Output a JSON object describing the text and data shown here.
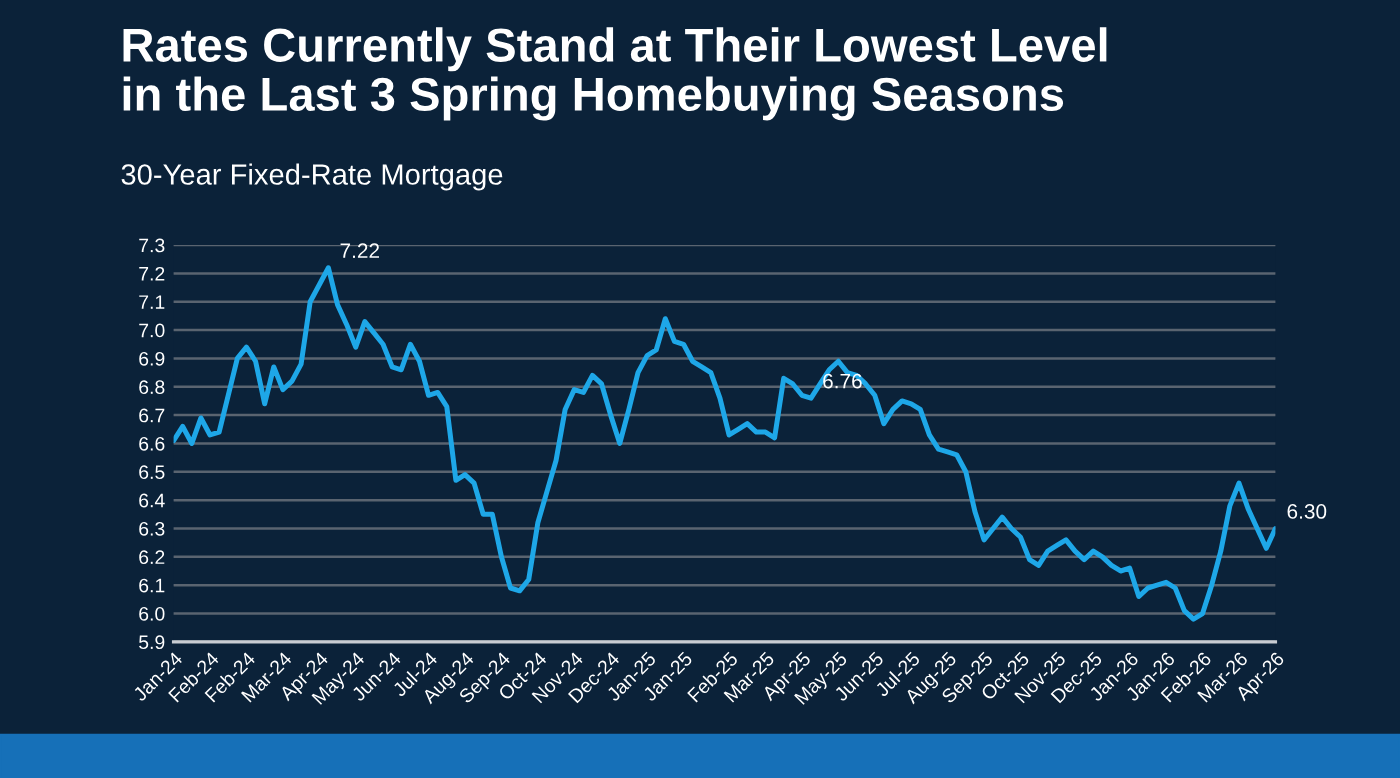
{
  "chart_data": {
    "type": "line",
    "title": "Rates Currently Stand at Their Lowest Level\nin the Last 3 Spring Homebuying Seasons",
    "subtitle": "30-Year Fixed-Rate Mortgage",
    "categories": [
      "Jan-24",
      null,
      null,
      null,
      "Feb-24",
      null,
      null,
      null,
      "Feb-24",
      null,
      null,
      null,
      "Mar-24",
      null,
      null,
      null,
      "Apr-24",
      null,
      null,
      null,
      "May-24",
      null,
      null,
      null,
      "Jun-24",
      null,
      null,
      null,
      "Jul-24",
      null,
      null,
      null,
      "Aug-24",
      null,
      null,
      null,
      "Sep-24",
      null,
      null,
      null,
      "Oct-24",
      null,
      null,
      null,
      "Nov-24",
      null,
      null,
      null,
      "Dec-24",
      null,
      null,
      null,
      "Jan-25",
      null,
      null,
      null,
      "Jan-25",
      null,
      null,
      null,
      null,
      "Feb-25",
      null,
      null,
      null,
      "Mar-25",
      null,
      null,
      null,
      "Apr-25",
      null,
      null,
      null,
      "May-25",
      null,
      null,
      null,
      "Jun-25",
      null,
      null,
      null,
      "Jul-25",
      null,
      null,
      null,
      "Aug-25",
      null,
      null,
      null,
      "Sep-25",
      null,
      null,
      null,
      "Oct-25",
      null,
      null,
      null,
      "Nov-25",
      null,
      null,
      null,
      "Dec-25",
      null,
      null,
      null,
      "Jan-26",
      null,
      null,
      null,
      "Jan-26",
      null,
      null,
      null,
      "Feb-26",
      null,
      null,
      null,
      "Mar-26",
      null,
      null,
      null,
      "Apr-26"
    ],
    "series": [
      {
        "color": "#1ea7e8",
        "values": [
          6.61,
          6.66,
          6.6,
          6.69,
          6.63,
          6.64,
          6.77,
          6.9,
          6.94,
          6.89,
          6.74,
          6.87,
          6.79,
          6.82,
          6.88,
          7.1,
          7.16,
          7.22,
          7.09,
          7.02,
          6.94,
          7.03,
          6.99,
          6.95,
          6.87,
          6.86,
          6.95,
          6.89,
          6.77,
          6.78,
          6.73,
          6.47,
          6.49,
          6.46,
          6.35,
          6.35,
          6.2,
          6.09,
          6.08,
          6.12,
          6.32,
          6.43,
          6.54,
          6.72,
          6.79,
          6.78,
          6.84,
          6.81,
          6.7,
          6.6,
          6.72,
          6.85,
          6.91,
          6.93,
          7.04,
          6.96,
          6.95,
          6.89,
          6.87,
          6.85,
          6.76,
          6.63,
          6.65,
          6.67,
          6.64,
          6.64,
          6.62,
          6.83,
          6.81,
          6.77,
          6.76,
          6.81,
          6.86,
          6.89,
          6.85,
          6.84,
          6.81,
          6.77,
          6.67,
          6.72,
          6.75,
          6.74,
          6.72,
          6.63,
          6.58,
          6.57,
          6.56,
          6.5,
          6.36,
          6.26,
          6.3,
          6.34,
          6.3,
          6.27,
          6.19,
          6.17,
          6.22,
          6.24,
          6.26,
          6.22,
          6.19,
          6.22,
          6.2,
          6.17,
          6.15,
          6.16,
          6.06,
          6.09,
          6.1,
          6.11,
          6.09,
          6.01,
          5.98,
          6.0,
          6.1,
          6.22,
          6.38,
          6.46,
          6.37,
          6.3,
          6.23,
          6.3
        ],
        "value_labels": [
          null,
          null,
          null,
          null,
          null,
          null,
          null,
          null,
          null,
          null,
          null,
          null,
          null,
          null,
          null,
          null,
          null,
          "7.22",
          null,
          null,
          null,
          null,
          null,
          null,
          null,
          null,
          null,
          null,
          null,
          null,
          null,
          null,
          null,
          null,
          null,
          null,
          null,
          null,
          null,
          null,
          null,
          null,
          null,
          null,
          null,
          null,
          null,
          null,
          null,
          null,
          null,
          null,
          null,
          null,
          null,
          null,
          null,
          null,
          null,
          null,
          null,
          null,
          null,
          null,
          null,
          null,
          null,
          null,
          null,
          null,
          "6.76",
          null,
          null,
          null,
          null,
          null,
          null,
          null,
          null,
          null,
          null,
          null,
          null,
          null,
          null,
          null,
          null,
          null,
          null,
          null,
          null,
          null,
          null,
          null,
          null,
          null,
          null,
          null,
          null,
          null,
          null,
          null,
          null,
          null,
          null,
          null,
          null,
          null,
          null,
          null,
          null,
          null,
          null,
          null,
          null,
          null,
          null,
          null,
          null,
          null,
          null,
          "6.30"
        ]
      }
    ],
    "ylim": [
      5.9,
      7.3
    ],
    "yticks": [
      {
        "value": 5.9,
        "label": "5.9"
      },
      {
        "value": 6.0,
        "label": "6.0"
      },
      {
        "value": 6.1,
        "label": "6.1"
      },
      {
        "value": 6.2,
        "label": "6.2"
      },
      {
        "value": 6.3,
        "label": "6.3"
      },
      {
        "value": 6.4,
        "label": "6.4"
      },
      {
        "value": 6.5,
        "label": "6.5"
      },
      {
        "value": 6.6,
        "label": "6.6"
      },
      {
        "value": 6.7,
        "label": "6.7"
      },
      {
        "value": 6.8,
        "label": "6.8"
      },
      {
        "value": 6.9,
        "label": "6.9"
      },
      {
        "value": 7.0,
        "label": "7.0"
      },
      {
        "value": 7.1,
        "label": "7.1"
      },
      {
        "value": 7.2,
        "label": "7.2"
      },
      {
        "value": 7.3,
        "label": "7.3"
      }
    ],
    "grid": "y",
    "marker": "none",
    "line_style": "solid"
  }
}
